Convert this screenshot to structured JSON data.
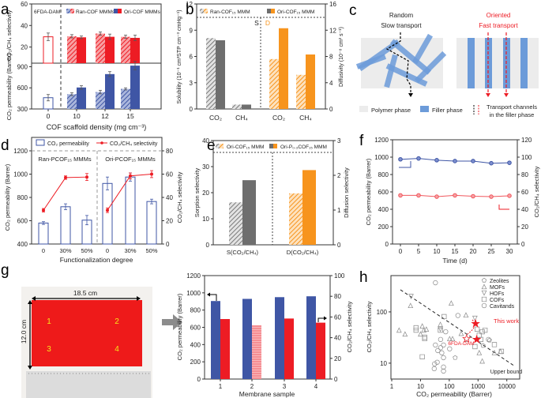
{
  "panels": {
    "a": "a",
    "b": "b",
    "c": "c",
    "d": "d",
    "e": "e",
    "f": "f",
    "g": "g",
    "h": "h"
  },
  "colors": {
    "blue": "#3f56a5",
    "red": "#ed1c24",
    "gray": "#6e6e6e",
    "orange": "#f7941d",
    "filler": "#6c9bd9",
    "polymer": "#ececec",
    "pink": "#f4868b"
  },
  "diagram_c": {
    "left_title_1": "Random",
    "left_title_2": "Slow transport",
    "right_title_1": "Oriented",
    "right_title_2": "Fast transport",
    "legend_polymer": "Polymer phase",
    "legend_filler": "Filler phase",
    "legend_channels_1": "Transport channels",
    "legend_channels_2": "in the filler phase"
  },
  "photo_g": {
    "width_label": "18.5 cm",
    "height_label": "12.0 cm",
    "spots": [
      "1",
      "2",
      "3",
      "4"
    ]
  },
  "chart_data": [
    {
      "panel": "a",
      "type": "bar",
      "categories": [
        "0",
        "10",
        "12",
        "15"
      ],
      "xlabel": "COF scaffold density (mg cm⁻³)",
      "legend": [
        "6FDA-DAM",
        "Ran-COF MMMs",
        "Ori-COF MMMs"
      ],
      "upper": {
        "ylabel": "CO₂/CH₄ selectivity",
        "ylim": [
          5,
          60
        ],
        "yticks": [
          "20",
          "40",
          "60"
        ],
        "series": [
          {
            "name": "6FDA-DAM",
            "values": [
              29.5,
              null,
              null,
              null
            ],
            "errors": [
              3.5,
              0,
              0,
              0
            ]
          },
          {
            "name": "Ran-COF MMMs",
            "values": [
              null,
              30,
              32.5,
              29.5
            ],
            "errors": [
              0,
              1.5,
              1.5,
              1.5
            ]
          },
          {
            "name": "Ori-COF MMMs",
            "values": [
              null,
              29,
              29.5,
              28.5
            ],
            "errors": [
              0,
              1.2,
              2.5,
              2.5
            ]
          }
        ]
      },
      "lower": {
        "ylabel": "CO₂ permeability (Barrer)",
        "ylim": [
          300,
          950
        ],
        "yticks": [
          "300",
          "600",
          "900"
        ],
        "series": [
          {
            "name": "6FDA-DAM",
            "values": [
              460,
              null,
              null,
              null
            ],
            "errors": [
              45,
              0,
              0,
              0
            ]
          },
          {
            "name": "Ran-COF MMMs",
            "values": [
              null,
              510,
              540,
              585
            ],
            "errors": [
              0,
              20,
              25,
              15
            ]
          },
          {
            "name": "Ori-COF MMMs",
            "values": [
              null,
              605,
              795,
              915
            ],
            "errors": [
              0,
              25,
              35,
              60
            ]
          }
        ]
      }
    },
    {
      "panel": "b",
      "type": "bar",
      "categories": [
        "CO₂",
        "CH₄",
        "CO₂",
        "CH₄"
      ],
      "section_labels": [
        "S",
        "D"
      ],
      "ylabel": "Solubility (10⁻¹ cm³STP cm⁻³ cmHg⁻¹)",
      "ylim": [
        0,
        12
      ],
      "yticks": [
        "0",
        "3",
        "6",
        "9",
        "12"
      ],
      "y2label": "Diffusivity (10⁻⁸ cm² s⁻¹)",
      "y2lim": [
        0,
        16
      ],
      "y2ticks": [
        "0",
        "4",
        "8",
        "12",
        "16"
      ],
      "series": [
        {
          "name": "Ran-COF₁₅ MMM",
          "solubility": [
            8.1,
            0.5
          ],
          "diffusivity": [
            7.6,
            5.2
          ]
        },
        {
          "name": "Ori-COF₁₅ MMM",
          "solubility": [
            7.85,
            0.5
          ],
          "diffusivity": [
            12.3,
            8.3
          ]
        }
      ]
    },
    {
      "panel": "d",
      "type": "bar+line",
      "categories": [
        "0",
        "30%",
        "50%",
        "0",
        "30%",
        "50%"
      ],
      "groups": [
        "Ran-PCOF₁₅ MMMs",
        "Ori-PCOF₁₅ MMMs"
      ],
      "xlabel": "Functionalization degree",
      "ylabel": "CO₂ permeability (Barrer)",
      "ylim": [
        400,
        1200
      ],
      "yticks": [
        "400",
        "600",
        "800",
        "1000",
        "1200"
      ],
      "y2label": "CO₂/CH₄ selectivity",
      "y2lim": [
        0,
        80
      ],
      "y2ticks": [
        "0",
        "20",
        "40",
        "60",
        "80"
      ],
      "series": [
        {
          "name": "CO₂ permeability",
          "type": "bar",
          "values": [
            580,
            720,
            605,
            920,
            975,
            765
          ],
          "errors": [
            12,
            25,
            40,
            55,
            35,
            20
          ]
        },
        {
          "name": "CO₂/CH₄ selectivity",
          "type": "line",
          "values": [
            29,
            57,
            57.5,
            29,
            58.5,
            60
          ],
          "errors": [
            1.5,
            1.5,
            3,
            2,
            2.5,
            3
          ]
        }
      ]
    },
    {
      "panel": "e",
      "type": "bar",
      "categories": [
        "S(CO₂/CH₄)",
        "D(CO₂/CH₄)"
      ],
      "ylabel": "Sorption selectivity",
      "ylim": [
        0,
        40
      ],
      "yticks": [
        "0",
        "10",
        "20",
        "30",
        "40"
      ],
      "y2label": "Diffusion selectivity",
      "y2lim": [
        0,
        3
      ],
      "y2ticks": [
        "0",
        "1",
        "2",
        "3"
      ],
      "series": [
        {
          "name": "Ori-COF₁₅ MMM",
          "values": [
            16.3,
            1.48
          ]
        },
        {
          "name": "Ori-P₀.₃COF₁₅ MMM",
          "values": [
            24.8,
            2.15
          ]
        }
      ]
    },
    {
      "panel": "f",
      "type": "line",
      "x": [
        0,
        5,
        10,
        15,
        20,
        25,
        30
      ],
      "xlabel": "Time (d)",
      "xticks": [
        "0",
        "5",
        "10",
        "15",
        "20",
        "25",
        "30"
      ],
      "ylabel": "CO₂ permeability (Barrer)",
      "ylim": [
        0,
        1200
      ],
      "yticks": [
        "0",
        "200",
        "400",
        "600",
        "800",
        "1000",
        "1200"
      ],
      "y2label": "CO₂/CH₄ selectivity",
      "y2lim": [
        0,
        120
      ],
      "y2ticks": [
        "0",
        "20",
        "40",
        "60",
        "80",
        "100",
        "120"
      ],
      "series": [
        {
          "name": "CO₂ permeability",
          "axis": "left",
          "values": [
            975,
            985,
            965,
            955,
            955,
            930,
            935
          ]
        },
        {
          "name": "CO₂/CH₄ selectivity",
          "axis": "right",
          "values": [
            56,
            56,
            54.5,
            56,
            55,
            54.5,
            55.5
          ]
        }
      ]
    },
    {
      "panel": "g",
      "type": "bar",
      "categories": [
        "1",
        "2",
        "3",
        "4"
      ],
      "xlabel": "Membrane sample",
      "ylabel": "CO₂ permeability (Barrer)",
      "ylim": [
        0,
        1200
      ],
      "yticks": [
        "0",
        "200",
        "400",
        "600",
        "800",
        "1000",
        "1200"
      ],
      "y2label": "CO₂/CH₄ selectivity",
      "y2lim": [
        0,
        100
      ],
      "y2ticks": [
        "0",
        "20",
        "40",
        "60",
        "80",
        "100"
      ],
      "series": [
        {
          "name": "CO₂ permeability",
          "axis": "left",
          "values": [
            905,
            930,
            950,
            960
          ]
        },
        {
          "name": "CO₂/CH₄ selectivity",
          "axis": "right",
          "values": [
            58,
            52,
            58.5,
            54.5
          ]
        }
      ]
    },
    {
      "panel": "h",
      "type": "scatter",
      "xlabel": "CO₂ permeability (Barrer)",
      "ylabel": "CO₂/CH₄ selectivity",
      "xscale": "log",
      "yscale": "log",
      "xlim": [
        1,
        28000
      ],
      "ylim": [
        4.9,
        510
      ],
      "xticks": [
        "1",
        "10",
        "100",
        "1000",
        "10000"
      ],
      "yticks": [
        "10",
        "100"
      ],
      "upper_bound": {
        "label": "Upper bound",
        "points": [
          [
            2,
            270
          ],
          [
            17400,
            9
          ]
        ]
      },
      "annotations": {
        "this_work": "This work",
        "reference": "6FDA-DAM"
      },
      "this_work": [
        [
          820,
          59
        ],
        [
          900,
          29
        ]
      ],
      "reference_point": [
        400,
        30
      ],
      "series": [
        {
          "name": "Zeolites",
          "marker": "pentagon",
          "points": [
            [
              160,
              12.8
            ],
            [
              2500,
              28
            ],
            [
              1500,
              22
            ]
          ]
        },
        {
          "name": "MOFs",
          "marker": "triangle-up",
          "points": [
            [
              1.8,
              44
            ],
            [
              2.9,
              37
            ],
            [
              4.5,
              133
            ],
            [
              117,
              148
            ],
            [
              380,
              87
            ],
            [
              10,
              37
            ],
            [
              11.5,
              53
            ],
            [
              49,
              57
            ],
            [
              103,
              30
            ],
            [
              130,
              30
            ],
            [
              260,
              38
            ],
            [
              1100,
              16
            ],
            [
              1400,
              11
            ],
            [
              3700,
              16
            ],
            [
              6000,
              17
            ],
            [
              13,
              44
            ],
            [
              16,
              46
            ]
          ]
        },
        {
          "name": "HOFs",
          "marker": "triangle-down",
          "points": [
            [
              4.7,
              200
            ],
            [
              49,
              46
            ],
            [
              780,
              75
            ]
          ]
        },
        {
          "name": "COFs",
          "marker": "square",
          "points": [
            [
              7,
              49
            ],
            [
              7,
              44
            ],
            [
              11.5,
              13.3
            ],
            [
              14,
              32
            ],
            [
              14,
              30
            ],
            [
              66,
              81
            ],
            [
              49,
              44
            ],
            [
              930,
              46
            ],
            [
              1100,
              35
            ],
            [
              1400,
              41
            ],
            [
              1250,
              29
            ],
            [
              780,
              21
            ],
            [
              3700,
              23
            ],
            [
              6500,
              17
            ],
            [
              1750,
              44
            ]
          ]
        },
        {
          "name": "Cavitands",
          "marker": "circle",
          "points": [
            [
              33,
              370
            ],
            [
              200,
              85
            ],
            [
              2300,
              29
            ],
            [
              30,
              7.8
            ],
            [
              31,
              9.7
            ],
            [
              38,
              10.4
            ],
            [
              63,
              8.4
            ],
            [
              63,
              7
            ],
            [
              63,
              12.8
            ],
            [
              55,
              15.9
            ],
            [
              40,
              17.6
            ],
            [
              50,
              20
            ],
            [
              33,
              22.6
            ],
            [
              63,
              22.6
            ],
            [
              50,
              29
            ],
            [
              103,
              19
            ],
            [
              75,
              41
            ],
            [
              400,
              29
            ]
          ]
        }
      ]
    }
  ]
}
